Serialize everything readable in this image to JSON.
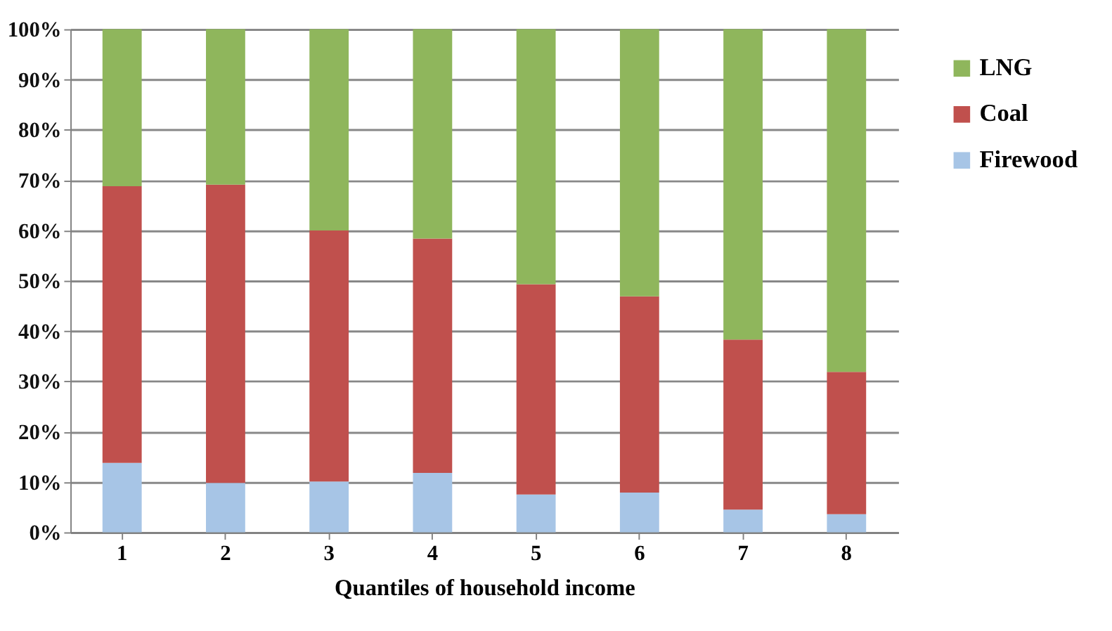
{
  "chart_data": {
    "type": "bar",
    "stacked": true,
    "xlabel": "Quantiles of household income",
    "categories": [
      "1",
      "2",
      "3",
      "4",
      "5",
      "6",
      "7",
      "8"
    ],
    "series": [
      {
        "name": "Firewood",
        "color": "#a7c5e6",
        "values": [
          13.8,
          9.8,
          10.1,
          11.8,
          7.5,
          7.9,
          4.5,
          3.6
        ]
      },
      {
        "name": "Coal",
        "color": "#c0504d",
        "values": [
          55.0,
          59.3,
          49.9,
          46.6,
          41.8,
          39.0,
          33.8,
          28.3
        ]
      },
      {
        "name": "LNG",
        "color": "#8fb65c",
        "values": [
          31.2,
          30.9,
          40.0,
          41.6,
          50.7,
          53.1,
          61.7,
          68.1
        ]
      }
    ],
    "ylim": [
      0,
      100
    ],
    "yticks": [
      {
        "value": 0,
        "label": "0%"
      },
      {
        "value": 10,
        "label": "10%"
      },
      {
        "value": 20,
        "label": "20%"
      },
      {
        "value": 30,
        "label": "30%"
      },
      {
        "value": 40,
        "label": "40%"
      },
      {
        "value": 50,
        "label": "50%"
      },
      {
        "value": 60,
        "label": "60%"
      },
      {
        "value": 70,
        "label": "70%"
      },
      {
        "value": 80,
        "label": "80%"
      },
      {
        "value": 90,
        "label": "90%"
      },
      {
        "value": 100,
        "label": "100%"
      }
    ],
    "grid": "y",
    "legend": "right"
  }
}
